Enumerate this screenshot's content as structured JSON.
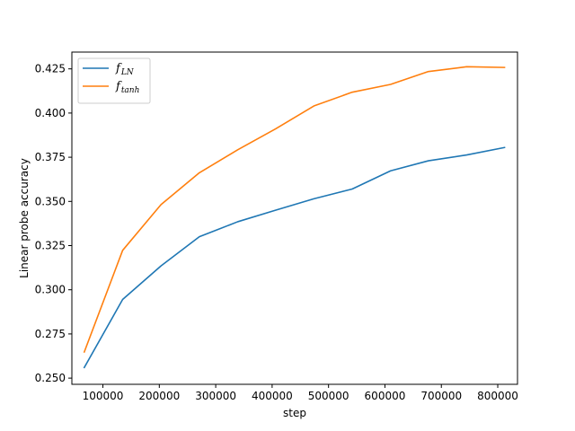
{
  "chart_data": {
    "type": "line",
    "xlabel": "step",
    "ylabel": "Linear probe accuracy",
    "xlim": [
      45000,
      835000
    ],
    "ylim": [
      0.2465,
      0.4345
    ],
    "x_ticks": [
      100000,
      200000,
      300000,
      400000,
      500000,
      600000,
      700000,
      800000
    ],
    "x_tick_labels": [
      "100000",
      "200000",
      "300000",
      "400000",
      "500000",
      "600000",
      "700000",
      "800000"
    ],
    "y_ticks": [
      0.25,
      0.275,
      0.3,
      0.325,
      0.35,
      0.375,
      0.4,
      0.425
    ],
    "y_tick_labels": [
      "0.250",
      "0.275",
      "0.300",
      "0.325",
      "0.350",
      "0.375",
      "0.400",
      "0.425"
    ],
    "grid": false,
    "legend_position": "top-left",
    "x": [
      67000,
      135000,
      203000,
      271000,
      339000,
      406000,
      474000,
      542000,
      610000,
      677000,
      745000,
      812000
    ],
    "series": [
      {
        "name": "f_LN",
        "base": "f",
        "subscript": "LN",
        "color": "#1f77b4",
        "values": [
          0.256,
          0.2945,
          0.3135,
          0.33,
          0.3385,
          0.345,
          0.3515,
          0.357,
          0.3673,
          0.373,
          0.3763,
          0.3805
        ]
      },
      {
        "name": "f_tanh",
        "base": "f",
        "subscript": "tanh",
        "color": "#ff7f0e",
        "values": [
          0.2648,
          0.3223,
          0.3482,
          0.3662,
          0.3792,
          0.391,
          0.404,
          0.4118,
          0.4162,
          0.4235,
          0.4262,
          0.4258
        ]
      }
    ]
  }
}
